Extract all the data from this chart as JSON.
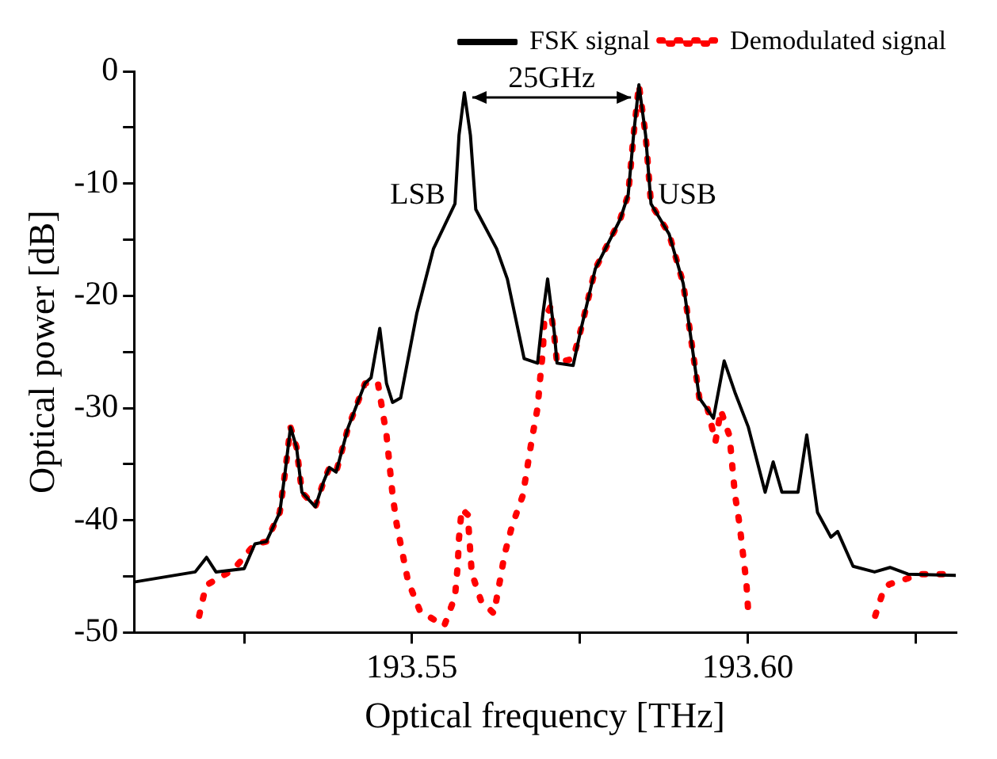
{
  "chart_data": {
    "type": "line",
    "xlabel": "Optical frequency [THz]",
    "ylabel": "Optical power [dB]",
    "xlim": [
      193.5086,
      193.631
    ],
    "xticks": [
      {
        "value": 193.525,
        "label": null
      },
      193.55,
      {
        "value": 193.575,
        "label": null
      },
      {
        "value": 193.6,
        "label": "193.60"
      },
      {
        "value": 193.625,
        "label": null
      }
    ],
    "ylim": [
      -50,
      0
    ],
    "yticks": [
      -50,
      {
        "value": -45,
        "label": null
      },
      -40,
      {
        "value": -35,
        "label": null
      },
      -30,
      {
        "value": -25,
        "label": null
      },
      -20,
      {
        "value": -15,
        "label": null
      },
      -10,
      {
        "value": -5,
        "label": null
      },
      0
    ],
    "grid": false,
    "legend": "top right",
    "marker": "none",
    "annotations": [
      "25GHz",
      "LSB",
      "USB"
    ],
    "series": [
      {
        "name": "FSK signal",
        "color": "#000000",
        "line_style": "solid",
        "x": [
          193.5086,
          193.5177,
          193.5194,
          193.5208,
          193.525,
          193.5266,
          193.5283,
          193.5303,
          193.5311,
          193.5319,
          193.5328,
          193.5336,
          193.5356,
          193.5368,
          193.5377,
          193.5387,
          193.5405,
          193.543,
          193.5439,
          193.5452,
          193.5462,
          193.5471,
          193.5483,
          193.5507,
          193.5532,
          193.5564,
          193.557,
          193.5578,
          193.5587,
          193.5595,
          193.5626,
          193.5642,
          193.5667,
          193.5687,
          193.5695,
          193.5702,
          193.5712,
          193.5716,
          193.574,
          193.5752,
          193.5773,
          193.581,
          193.5822,
          193.583,
          193.5838,
          193.5848,
          193.5856,
          193.5883,
          193.5904,
          193.5928,
          193.5949,
          193.5965,
          193.5981,
          193.6001,
          193.6026,
          193.6038,
          193.6051,
          193.6075,
          193.6088,
          193.6104,
          193.6124,
          193.6134,
          193.6157,
          193.6189,
          193.6212,
          193.6239,
          193.631
        ],
        "values": [
          -45.5,
          -44.6,
          -43.3,
          -44.6,
          -44.3,
          -42.1,
          -41.9,
          -39.3,
          -35.7,
          -31.7,
          -33.5,
          -37.5,
          -38.8,
          -36.6,
          -35.3,
          -35.7,
          -31.7,
          -27.8,
          -27.3,
          -22.9,
          -27.8,
          -29.5,
          -29.1,
          -21.6,
          -15.8,
          -11.8,
          -5.7,
          -1.9,
          -5.7,
          -12.3,
          -15.8,
          -18.5,
          -25.6,
          -26,
          -21.6,
          -18.5,
          -23.3,
          -26,
          -26.2,
          -22.9,
          -17.6,
          -13.2,
          -11,
          -5.7,
          -1.2,
          -5.7,
          -11.8,
          -14.5,
          -18.9,
          -29.1,
          -30.9,
          -25.8,
          -28.6,
          -31.7,
          -37.5,
          -34.8,
          -37.5,
          -37.5,
          -32.4,
          -39.3,
          -41.5,
          -41,
          -44.1,
          -44.6,
          -44.2,
          -44.8,
          -44.9
        ]
      },
      {
        "name": "Demodulated signal",
        "color": "#ff0000",
        "line_style": "dotted",
        "x": [
          193.5183,
          193.5193,
          193.5234,
          193.5266,
          193.5283,
          193.5303,
          193.5311,
          193.5319,
          193.5328,
          193.5336,
          193.5356,
          193.5368,
          193.5377,
          193.5387,
          193.5405,
          193.543,
          193.5449,
          193.5462,
          193.5471,
          193.5477,
          193.5486,
          193.5494,
          193.5512,
          193.5548,
          193.5564,
          193.5568,
          193.557,
          193.5574,
          193.5583,
          193.5586,
          193.5589,
          193.5603,
          193.5622,
          193.563,
          193.5638,
          193.5649,
          193.5665,
          193.5679,
          193.5687,
          193.5691,
          193.5695,
          193.5697,
          193.5706,
          193.5712,
          193.5716,
          193.574,
          193.5752,
          193.5773,
          193.581,
          193.5822,
          193.583,
          193.5838,
          193.5848,
          193.5856,
          193.5883,
          193.5904,
          193.5928,
          193.594,
          193.5952,
          193.596,
          193.5973,
          193.5977,
          193.5981,
          193.5988,
          193.5993,
          193.5998,
          193.6001,
          193.61,
          193.619,
          193.6203,
          193.6211,
          193.6258,
          193.6303
        ],
        "values": [
          -48.5,
          -45.8,
          -44.4,
          -42.1,
          -41.9,
          -39.3,
          -35.7,
          -31.7,
          -33.5,
          -37.5,
          -38.8,
          -36.6,
          -35.3,
          -35.7,
          -31.7,
          -27.8,
          -27.7,
          -32.4,
          -37.7,
          -40.3,
          -43,
          -45.4,
          -48.1,
          -49.4,
          -46.8,
          -44.1,
          -41.6,
          -39,
          -39.5,
          -42.1,
          -44.7,
          -47.2,
          -48.3,
          -45.7,
          -43,
          -40.5,
          -37.8,
          -32.6,
          -30,
          -27.3,
          -24.9,
          -22.2,
          -21,
          -23.6,
          -26,
          -25.6,
          -22.9,
          -17.6,
          -13.2,
          -11,
          -5.7,
          -1.2,
          -5.7,
          -11.8,
          -14.5,
          -18.9,
          -29.1,
          -30,
          -33,
          -30.2,
          -32.5,
          -35.1,
          -37.7,
          -40.4,
          -43,
          -45.5,
          -48.3,
          null,
          -48.5,
          -46.1,
          -45.7,
          -44.8,
          -44.8
        ]
      }
    ]
  }
}
